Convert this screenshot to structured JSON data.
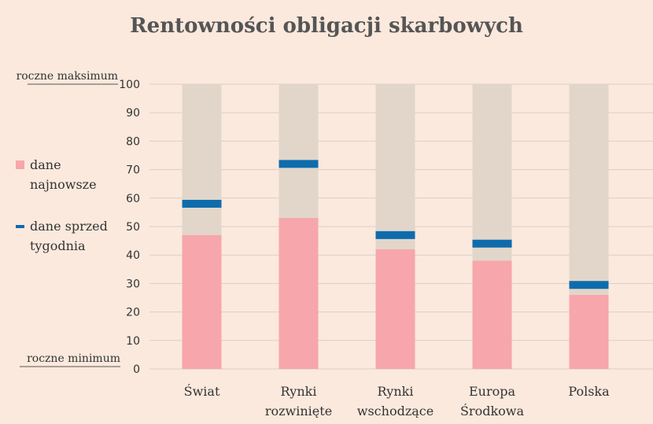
{
  "chart_data": {
    "type": "bar",
    "title": "Rentowności obligacji skarbowych",
    "categories": [
      [
        "Świat"
      ],
      [
        "Rynki",
        "rozwinięte"
      ],
      [
        "Rynki",
        "wschodzące"
      ],
      [
        "Europa",
        "Środkowa"
      ],
      [
        "Polska"
      ]
    ],
    "series": [
      {
        "name": "dane najnowsze",
        "values": [
          47,
          53,
          42,
          38,
          26
        ],
        "color": "#f7a6ab"
      },
      {
        "name": "dane sprzed tygodnia",
        "values": [
          58,
          72,
          47,
          44,
          29.5
        ],
        "color": "#0e6cad"
      }
    ],
    "range_bar_color": "#e2d6ca",
    "ylim": [
      0,
      100
    ],
    "yticks": [
      0,
      10,
      20,
      30,
      40,
      50,
      60,
      70,
      80,
      90,
      100
    ],
    "grid": true,
    "legend": {
      "position": "left",
      "items": [
        {
          "label_lines": [
            "dane",
            "najnowsze"
          ],
          "color": "#f7a6ab"
        },
        {
          "label_lines": [
            "dane sprzed",
            "tygodnia"
          ],
          "color": "#0e6cad"
        }
      ]
    },
    "range_labels": {
      "max": "roczne maksimum",
      "min": "roczne minimum"
    }
  }
}
